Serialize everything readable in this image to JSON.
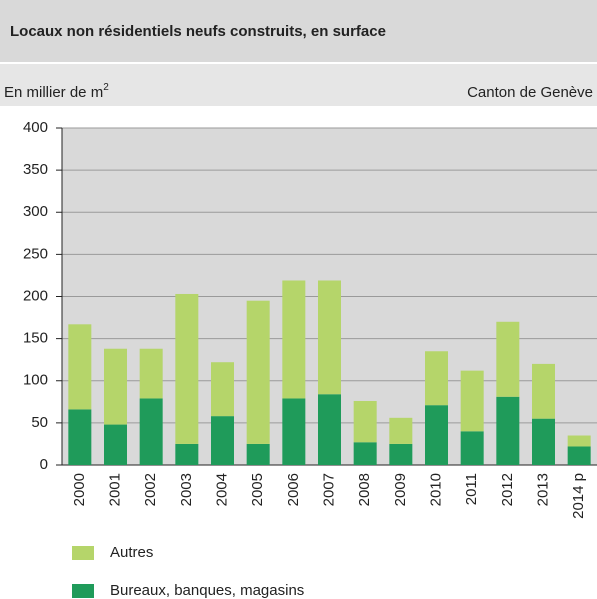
{
  "chart_data": {
    "type": "stacked_bar",
    "title": "Locaux non résidentiels neufs construits, en surface",
    "y_unit": "En millier de m",
    "y_unit_sup": "2",
    "source": "Canton de Genève",
    "categories": [
      "2000",
      "2001",
      "2002",
      "2003",
      "2004",
      "2005",
      "2006",
      "2007",
      "2008",
      "2009",
      "2010",
      "2011",
      "2012",
      "2013",
      "2014 p"
    ],
    "series": [
      {
        "name": "Bureaux, banques, magasins",
        "color": "#1f9b5a",
        "values": [
          66,
          48,
          79,
          25,
          58,
          25,
          79,
          84,
          27,
          25,
          71,
          40,
          81,
          55,
          22
        ]
      },
      {
        "name": "Autres",
        "color": "#b5d56a",
        "values": [
          101,
          90,
          59,
          178,
          64,
          170,
          140,
          135,
          49,
          31,
          64,
          72,
          89,
          65,
          13
        ]
      }
    ],
    "ylim": [
      0,
      400
    ],
    "yticks": [
      0,
      50,
      100,
      150,
      200,
      250,
      300,
      350,
      400
    ],
    "grid": true
  }
}
